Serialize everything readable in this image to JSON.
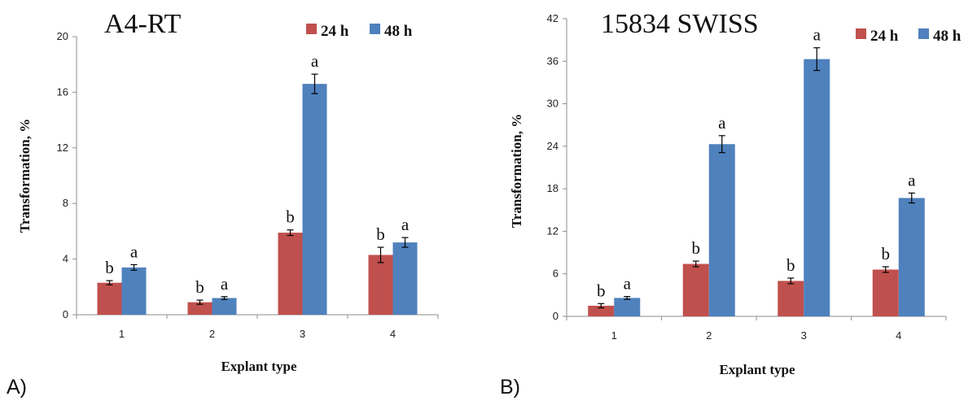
{
  "colors": {
    "series_24h": "#c0504d",
    "series_48h": "#4f81bd",
    "axis": "#8c8c8c",
    "error_bar": "#000000"
  },
  "chart_data": [
    {
      "type": "bar",
      "panel_label": "A)",
      "title": "A4-RT",
      "xlabel": "Explant type",
      "ylabel": "Transformation, %",
      "categories": [
        "1",
        "2",
        "3",
        "4"
      ],
      "ylim": [
        0,
        20
      ],
      "yticks": [
        "0",
        "4",
        "8",
        "12",
        "16",
        "20"
      ],
      "grid": false,
      "legend_position": "top-right",
      "series": [
        {
          "name": "24 h",
          "values": [
            2.3,
            0.9,
            5.9,
            4.3
          ],
          "errors": [
            0.15,
            0.15,
            0.2,
            0.55
          ],
          "labels": [
            "b",
            "b",
            "b",
            "b"
          ]
        },
        {
          "name": "48 h",
          "values": [
            3.4,
            1.2,
            16.6,
            5.2
          ],
          "errors": [
            0.2,
            0.1,
            0.7,
            0.35
          ],
          "labels": [
            "a",
            "a",
            "a",
            "a"
          ]
        }
      ]
    },
    {
      "type": "bar",
      "panel_label": "B)",
      "title": "15834 SWISS",
      "xlabel": "Explant type",
      "ylabel": "Transformation, %",
      "categories": [
        "1",
        "2",
        "3",
        "4"
      ],
      "ylim": [
        0,
        42
      ],
      "yticks": [
        "0",
        "6",
        "12",
        "18",
        "24",
        "30",
        "36",
        "42"
      ],
      "grid": false,
      "legend_position": "top-right",
      "series": [
        {
          "name": "24 h",
          "values": [
            1.5,
            7.4,
            5.0,
            6.6
          ],
          "errors": [
            0.3,
            0.4,
            0.4,
            0.4
          ],
          "labels": [
            "b",
            "b",
            "b",
            "b"
          ]
        },
        {
          "name": "48 h",
          "values": [
            2.6,
            24.3,
            36.3,
            16.7
          ],
          "errors": [
            0.2,
            1.2,
            1.6,
            0.7
          ],
          "labels": [
            "a",
            "a",
            "a",
            "a"
          ]
        }
      ]
    }
  ]
}
